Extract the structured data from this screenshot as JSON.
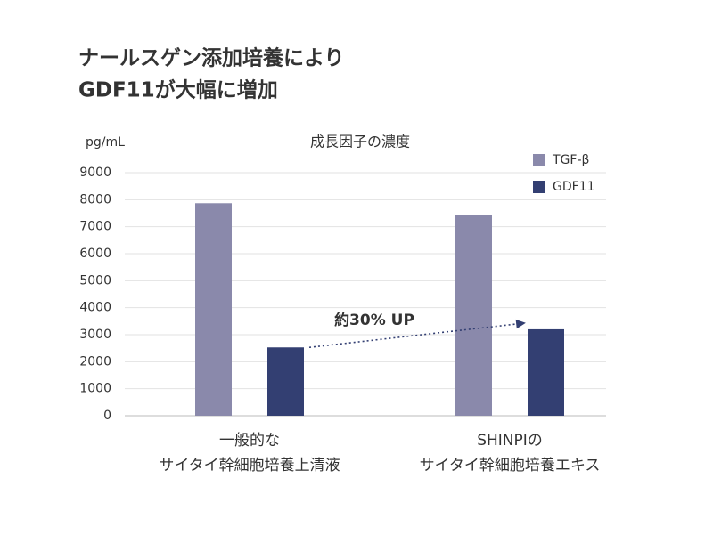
{
  "chart_data": {
    "type": "bar",
    "title": [
      "ナールスゲン添加培養により",
      "GDF11が大幅に増加"
    ],
    "subtitle": "成長因子の濃度",
    "y_label": "pg/mL",
    "categories": [
      [
        "一般的な",
        "サイタイ幹細胞培養上清液"
      ],
      [
        "SHINPIの",
        "サイタイ幹細胞培養エキス"
      ]
    ],
    "series": [
      {
        "name": "TGF-β",
        "color": "#8a89ab",
        "values": [
          7870,
          7450
        ]
      },
      {
        "name": "GDF11",
        "color": "#333f72",
        "values": [
          2530,
          3200
        ]
      }
    ],
    "annotation": "約30% UP",
    "ylim": [
      0,
      9000
    ],
    "yticks": [
      0,
      1000,
      2000,
      3000,
      4000,
      5000,
      6000,
      7000,
      8000,
      9000
    ],
    "grid": true
  }
}
